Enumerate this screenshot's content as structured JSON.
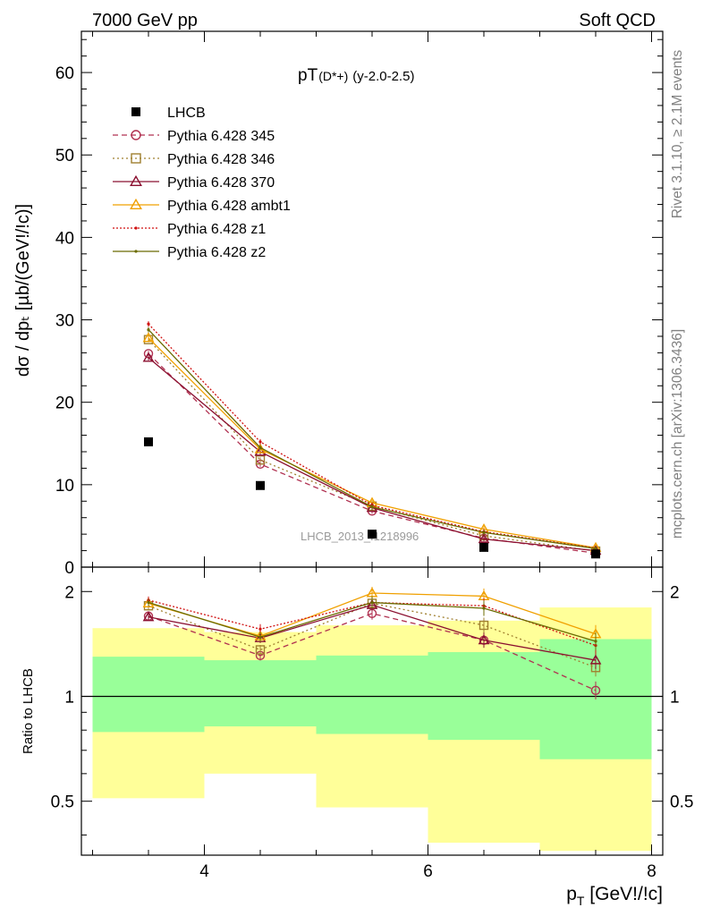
{
  "header": {
    "left": "7000 GeV pp",
    "right": "Soft QCD"
  },
  "side_text": {
    "rivet": "Rivet 3.1.10, ≥ 2.1M events",
    "mcplots": "mcplots.cern.ch [arXiv:1306.3436]"
  },
  "watermark": "LHCB_2013_I1218996",
  "chart_data": [
    {
      "type": "line",
      "title_main": "pT",
      "title_particle": "(D*+)",
      "title_range": "(y-2.0-2.5)",
      "ylabel": "dσ / dp_T [µb/(GeV!/!c)]",
      "xlim": [
        2.9,
        8.1
      ],
      "ylim": [
        0,
        65
      ],
      "y_ticks": [
        0,
        10,
        20,
        30,
        40,
        50,
        60
      ],
      "legend_position": "top-left",
      "data": {
        "name": "LHCB",
        "x": [
          3.5,
          4.5,
          5.5,
          6.5,
          7.5
        ],
        "y": [
          15.2,
          9.9,
          4.0,
          2.4,
          1.6
        ]
      },
      "series": [
        {
          "name": "Pythia 6.428 345",
          "color": "#b03050",
          "dash": "6,4",
          "marker": "circle-open",
          "x": [
            3.5,
            4.5,
            5.5,
            6.5,
            7.5
          ],
          "y": [
            25.9,
            12.5,
            6.8,
            3.5,
            1.7
          ]
        },
        {
          "name": "Pythia 6.428 346",
          "color": "#a08030",
          "dash": "2,3",
          "marker": "square-open",
          "x": [
            3.5,
            4.5,
            5.5,
            6.5,
            7.5
          ],
          "y": [
            27.6,
            13.0,
            7.4,
            3.8,
            1.95
          ]
        },
        {
          "name": "Pythia 6.428 370",
          "color": "#8b1030",
          "dash": "",
          "marker": "triangle-open",
          "x": [
            3.5,
            4.5,
            5.5,
            6.5,
            7.5
          ],
          "y": [
            25.4,
            14.0,
            7.2,
            3.4,
            2.0
          ]
        },
        {
          "name": "Pythia 6.428 ambt1",
          "color": "#f0a000",
          "dash": "",
          "marker": "triangle-open",
          "x": [
            3.5,
            4.5,
            5.5,
            6.5,
            7.5
          ],
          "y": [
            27.8,
            14.3,
            7.8,
            4.6,
            2.35
          ]
        },
        {
          "name": "Pythia 6.428 z1",
          "color": "#d01010",
          "dash": "2,2",
          "marker": "dot",
          "x": [
            3.5,
            4.5,
            5.5,
            6.5,
            7.5
          ],
          "y": [
            29.5,
            15.2,
            7.5,
            4.3,
            2.3
          ]
        },
        {
          "name": "Pythia 6.428 z2",
          "color": "#6b6b00",
          "dash": "",
          "marker": "dot",
          "x": [
            3.5,
            4.5,
            5.5,
            6.5,
            7.5
          ],
          "y": [
            28.8,
            14.5,
            7.3,
            4.2,
            2.25
          ]
        }
      ]
    },
    {
      "type": "line",
      "ylabel": "Ratio to LHCB",
      "xlabel": "p_T [GeV!/!c]",
      "xlim": [
        2.9,
        8.1
      ],
      "ylim": [
        0.35,
        2.35
      ],
      "y_scale": "log",
      "y_ticks": [
        0.5,
        1,
        2
      ],
      "x_ticks": [
        4,
        6,
        8
      ],
      "bands": {
        "bins": [
          [
            3.0,
            4.0
          ],
          [
            4.0,
            5.0
          ],
          [
            5.0,
            6.0
          ],
          [
            6.0,
            7.0
          ],
          [
            7.0,
            8.0
          ]
        ],
        "inner_color": "#99ff99",
        "outer_color": "#ffff99",
        "inner_low": [
          0.79,
          0.82,
          0.78,
          0.75,
          0.66
        ],
        "inner_high": [
          1.3,
          1.27,
          1.31,
          1.34,
          1.46
        ],
        "outer_low": [
          0.51,
          0.6,
          0.48,
          0.38,
          0.36
        ],
        "outer_high": [
          1.57,
          1.53,
          1.6,
          1.65,
          1.8
        ]
      },
      "series": [
        {
          "name": "Pythia 6.428 345",
          "x": [
            3.5,
            4.5,
            5.5,
            6.5,
            7.5
          ],
          "y": [
            1.7,
            1.31,
            1.73,
            1.45,
            1.04
          ]
        },
        {
          "name": "Pythia 6.428 346",
          "x": [
            3.5,
            4.5,
            5.5,
            6.5,
            7.5
          ],
          "y": [
            1.82,
            1.36,
            1.85,
            1.6,
            1.21
          ]
        },
        {
          "name": "Pythia 6.428 370",
          "x": [
            3.5,
            4.5,
            5.5,
            6.5,
            7.5
          ],
          "y": [
            1.69,
            1.47,
            1.83,
            1.45,
            1.27
          ]
        },
        {
          "name": "Pythia 6.428 ambt1",
          "x": [
            3.5,
            4.5,
            5.5,
            6.5,
            7.5
          ],
          "y": [
            1.85,
            1.49,
            1.98,
            1.94,
            1.51
          ]
        },
        {
          "name": "Pythia 6.428 z1",
          "x": [
            3.5,
            4.5,
            5.5,
            6.5,
            7.5
          ],
          "y": [
            1.89,
            1.56,
            1.86,
            1.82,
            1.4
          ]
        },
        {
          "name": "Pythia 6.428 z2",
          "x": [
            3.5,
            4.5,
            5.5,
            6.5,
            7.5
          ],
          "y": [
            1.86,
            1.48,
            1.86,
            1.79,
            1.44
          ]
        }
      ]
    }
  ]
}
